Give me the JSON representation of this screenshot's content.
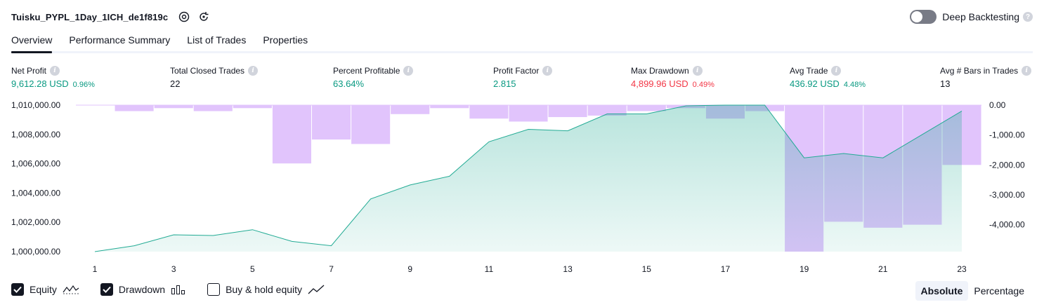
{
  "header": {
    "title": "Tuisku_PYPL_1Day_1ICH_de1f819c",
    "deep_backtesting_label": "Deep Backtesting"
  },
  "tabs": [
    {
      "label": "Overview",
      "active": true
    },
    {
      "label": "Performance Summary",
      "active": false
    },
    {
      "label": "List of Trades",
      "active": false
    },
    {
      "label": "Properties",
      "active": false
    }
  ],
  "metrics": {
    "net_profit": {
      "label": "Net Profit",
      "value": "9,612.28 USD",
      "pct": "0.96%"
    },
    "total_closed_trades": {
      "label": "Total Closed Trades",
      "value": "22"
    },
    "percent_profitable": {
      "label": "Percent Profitable",
      "value": "63.64%"
    },
    "profit_factor": {
      "label": "Profit Factor",
      "value": "2.815"
    },
    "max_drawdown": {
      "label": "Max Drawdown",
      "value": "4,899.96 USD",
      "pct": "0.49%"
    },
    "avg_trade": {
      "label": "Avg Trade",
      "value": "436.92 USD",
      "pct": "4.48%"
    },
    "avg_bars": {
      "label": "Avg # Bars in Trades",
      "value": "13"
    }
  },
  "colors": {
    "positive": "#089981",
    "negative": "#f23645",
    "drawdown_bar": "#e1c4fc",
    "equity_line": "#22ab94",
    "equity_fill": "#22ab94"
  },
  "chart_data": {
    "type": "area",
    "x": [
      1,
      2,
      3,
      4,
      5,
      6,
      7,
      8,
      9,
      10,
      11,
      12,
      13,
      14,
      15,
      16,
      17,
      18,
      19,
      20,
      21,
      22,
      23
    ],
    "x_ticks": [
      "1",
      "3",
      "5",
      "7",
      "9",
      "11",
      "13",
      "15",
      "17",
      "19",
      "21",
      "23"
    ],
    "series": [
      {
        "name": "Equity",
        "axis": "left",
        "values": [
          1000000,
          1000400,
          1001150,
          1001100,
          1001500,
          1000700,
          1000400,
          1003600,
          1004550,
          1005150,
          1007500,
          1008350,
          1008250,
          1009400,
          1009400,
          1009950,
          1010000,
          1010000,
          1006400,
          1006700,
          1006400,
          1008000,
          1009600
        ]
      },
      {
        "name": "Drawdown",
        "axis": "right",
        "type": "bar",
        "values": [
          0,
          -200,
          -100,
          -200,
          -100,
          -1950,
          -1150,
          -1300,
          -300,
          -100,
          -450,
          -550,
          -400,
          -350,
          -200,
          -100,
          -450,
          -200,
          -4900,
          -3900,
          -4100,
          -4000,
          -2000
        ]
      }
    ],
    "y_left_ticks": [
      "1,010,000.00",
      "1,008,000.00",
      "1,006,000.00",
      "1,004,000.00",
      "1,002,000.00",
      "1,000,000.00"
    ],
    "y_right_ticks": [
      "0.00",
      "-1,000.00",
      "-2,000.00",
      "-3,000.00",
      "-4,000.00"
    ],
    "y_left_range": [
      1000000,
      1010000
    ],
    "y_right_range": [
      -4900,
      0
    ],
    "grid": false
  },
  "legend": {
    "equity": {
      "label": "Equity",
      "checked": true
    },
    "drawdown": {
      "label": "Drawdown",
      "checked": true
    },
    "buy_hold": {
      "label": "Buy & hold equity",
      "checked": false
    }
  },
  "mode": {
    "absolute": "Absolute",
    "percentage": "Percentage",
    "selected": "absolute"
  }
}
